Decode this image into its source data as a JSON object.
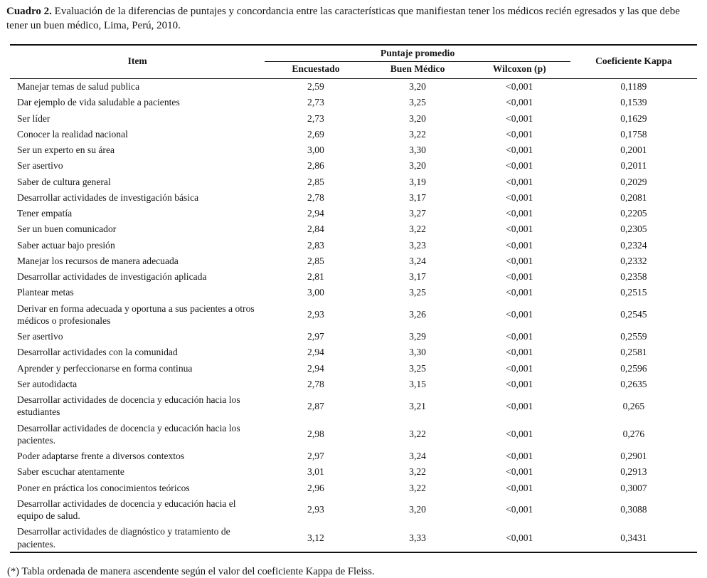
{
  "caption": {
    "label": "Cuadro 2.",
    "text": " Evaluación de la diferencias de puntajes y concordancia entre las características que manifiestan tener los médicos recién egresados y las que debe tener un buen médico, Lima, Perú, 2010."
  },
  "table": {
    "col_item": "Item",
    "group_header": "Puntaje promedio",
    "col_encuestado": "Encuestado",
    "col_buen_medico": "Buen Médico",
    "col_wilcoxon": "Wilcoxon (p)",
    "col_kappa": "Coeficiente Kappa",
    "rows": [
      {
        "item": "Manejar temas de salud publica",
        "encuestado": "2,59",
        "buen_medico": "3,20",
        "wilcoxon": "<0,001",
        "kappa": "0,1189"
      },
      {
        "item": "Dar ejemplo de vida saludable a pacientes",
        "encuestado": "2,73",
        "buen_medico": "3,25",
        "wilcoxon": "<0,001",
        "kappa": "0,1539"
      },
      {
        "item": "Ser líder",
        "encuestado": "2,73",
        "buen_medico": "3,20",
        "wilcoxon": "<0,001",
        "kappa": "0,1629"
      },
      {
        "item": "Conocer la realidad nacional",
        "encuestado": "2,69",
        "buen_medico": "3,22",
        "wilcoxon": "<0,001",
        "kappa": "0,1758"
      },
      {
        "item": "Ser  un experto en su área",
        "encuestado": "3,00",
        "buen_medico": "3,30",
        "wilcoxon": "<0,001",
        "kappa": "0,2001"
      },
      {
        "item": "Ser asertivo",
        "encuestado": "2,86",
        "buen_medico": "3,20",
        "wilcoxon": "<0,001",
        "kappa": "0,2011"
      },
      {
        "item": "Saber de  cultura general",
        "encuestado": "2,85",
        "buen_medico": "3,19",
        "wilcoxon": "<0,001",
        "kappa": "0,2029"
      },
      {
        "item": "Desarrollar actividades de investigación básica",
        "encuestado": "2,78",
        "buen_medico": "3,17",
        "wilcoxon": "<0,001",
        "kappa": "0,2081"
      },
      {
        "item": "Tener empatía",
        "encuestado": "2,94",
        "buen_medico": "3,27",
        "wilcoxon": "<0,001",
        "kappa": "0,2205"
      },
      {
        "item": "Ser un buen comunicador",
        "encuestado": "2,84",
        "buen_medico": "3,22",
        "wilcoxon": "<0,001",
        "kappa": "0,2305"
      },
      {
        "item": "Saber actuar bajo presión",
        "encuestado": "2,83",
        "buen_medico": "3,23",
        "wilcoxon": "<0,001",
        "kappa": "0,2324"
      },
      {
        "item": "Manejar los recursos de manera adecuada",
        "encuestado": "2,85",
        "buen_medico": "3,24",
        "wilcoxon": "<0,001",
        "kappa": "0,2332"
      },
      {
        "item": "Desarrollar actividades de investigación aplicada",
        "encuestado": "2,81",
        "buen_medico": "3,17",
        "wilcoxon": "<0,001",
        "kappa": "0,2358"
      },
      {
        "item": "Plantear metas",
        "encuestado": "3,00",
        "buen_medico": "3,25",
        "wilcoxon": "<0,001",
        "kappa": "0,2515"
      },
      {
        "item": "Derivar en forma adecuada y oportuna a sus pacientes a otros médicos o profesionales",
        "encuestado": "2,93",
        "buen_medico": "3,26",
        "wilcoxon": "<0,001",
        "kappa": "0,2545"
      },
      {
        "item": "Ser asertivo",
        "encuestado": "2,97",
        "buen_medico": "3,29",
        "wilcoxon": "<0,001",
        "kappa": "0,2559"
      },
      {
        "item": "Desarrollar actividades con la comunidad",
        "encuestado": "2,94",
        "buen_medico": "3,30",
        "wilcoxon": "<0,001",
        "kappa": "0,2581"
      },
      {
        "item": "Aprender y perfeccionarse en forma continua",
        "encuestado": "2,94",
        "buen_medico": "3,25",
        "wilcoxon": "<0,001",
        "kappa": "0,2596"
      },
      {
        "item": "Ser autodidacta",
        "encuestado": "2,78",
        "buen_medico": "3,15",
        "wilcoxon": "<0,001",
        "kappa": "0,2635"
      },
      {
        "item": "Desarrollar actividades de docencia y educación hacia los estudiantes",
        "encuestado": "2,87",
        "buen_medico": "3,21",
        "wilcoxon": "<0,001",
        "kappa": "0,265"
      },
      {
        "item": "Desarrollar actividades de docencia y educación hacia los pacientes.",
        "encuestado": "2,98",
        "buen_medico": "3,22",
        "wilcoxon": "<0,001",
        "kappa": "0,276"
      },
      {
        "item": "Poder adaptarse frente a diversos contextos",
        "encuestado": "2,97",
        "buen_medico": "3,24",
        "wilcoxon": "<0,001",
        "kappa": "0,2901"
      },
      {
        "item": "Saber  escuchar atentamente",
        "encuestado": "3,01",
        "buen_medico": "3,22",
        "wilcoxon": "<0,001",
        "kappa": "0,2913"
      },
      {
        "item": "Poner en práctica los conocimientos teóricos",
        "encuestado": "2,96",
        "buen_medico": "3,22",
        "wilcoxon": "<0,001",
        "kappa": "0,3007"
      },
      {
        "item": "Desarrollar actividades de docencia y educación hacia el equipo de salud.",
        "encuestado": "2,93",
        "buen_medico": "3,20",
        "wilcoxon": "<0,001",
        "kappa": "0,3088"
      },
      {
        "item": "Desarrollar actividades de diagnóstico y tratamiento de pacientes.",
        "encuestado": "3,12",
        "buen_medico": "3,33",
        "wilcoxon": "<0,001",
        "kappa": "0,3431"
      }
    ]
  },
  "footnote": "(*) Tabla ordenada de manera ascendente según el valor del coeficiente Kappa de Fleiss."
}
